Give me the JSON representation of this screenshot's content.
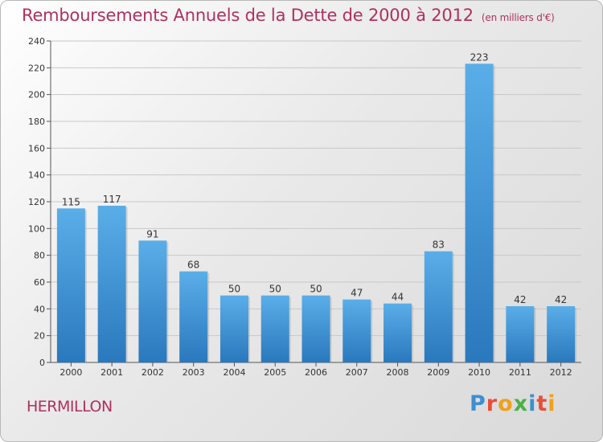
{
  "title": "Remboursements Annuels de la Dette de 2000 à 2012",
  "unit": "(en milliers d'€)",
  "commune": "HERMILLON",
  "logo_text": "Proxiti",
  "colors": {
    "title": "#b03060",
    "bar_light": "#5aaee8",
    "bar_dark": "#2a78bd",
    "grid": "#c8c8c8"
  },
  "chart_data": {
    "type": "bar",
    "title": "Remboursements Annuels de la Dette de 2000 à 2012",
    "xlabel": "",
    "ylabel": "",
    "categories": [
      "2000",
      "2001",
      "2002",
      "2003",
      "2004",
      "2005",
      "2006",
      "2007",
      "2008",
      "2009",
      "2010",
      "2011",
      "2012"
    ],
    "values": [
      115,
      117,
      91,
      68,
      50,
      50,
      50,
      47,
      44,
      83,
      223,
      42,
      42
    ],
    "ylim": [
      0,
      240
    ],
    "yticks": [
      0,
      20,
      40,
      60,
      80,
      100,
      120,
      140,
      160,
      180,
      200,
      220,
      240
    ],
    "grid": true,
    "legend": "none"
  }
}
